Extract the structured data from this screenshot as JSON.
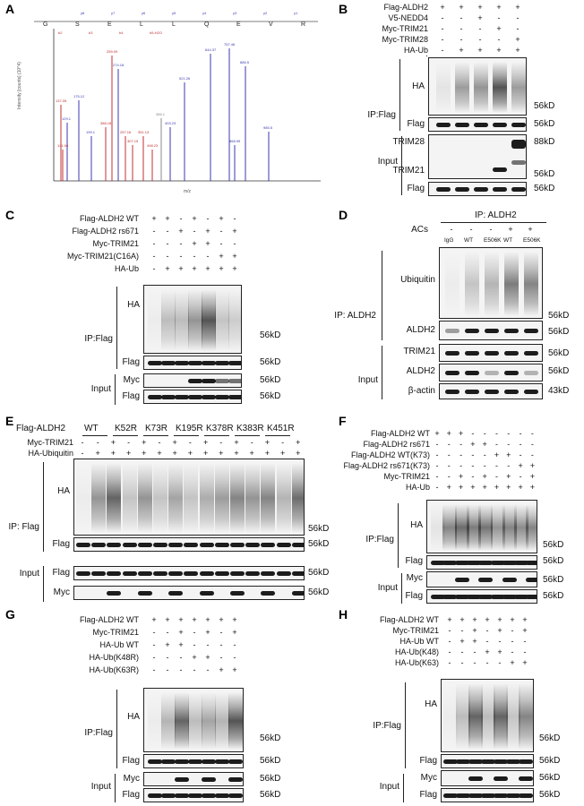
{
  "figure": {
    "panel_labels": [
      "A",
      "B",
      "C",
      "D",
      "E",
      "F",
      "G",
      "H"
    ],
    "panel_a": {
      "residues": [
        "G",
        "S",
        "E",
        "L",
        "L",
        "Q",
        "E",
        "V",
        "R"
      ],
      "b_ions": [
        "b2",
        "b3",
        "b4",
        "b5-H2O"
      ],
      "y_ions": [
        "y8",
        "y7",
        "y6",
        "y5",
        "y4",
        "y3",
        "y2",
        "y1"
      ],
      "ylabel": "Intensity [counts] (10^4)",
      "xlabel": "m/z",
      "peak_labels": [
        "175.12",
        "259.09",
        "274.18",
        "431.23",
        "521.26",
        "644.37",
        "757.46",
        "886.5",
        "985.5",
        "199.1",
        "386.1",
        "403.23",
        "498.23",
        "868.99",
        "137.05",
        "129.1",
        "141.06",
        "155.09",
        "257.16",
        "307.15",
        "351.13",
        "388.18"
      ]
    },
    "panel_b": {
      "rows": [
        {
          "label": "Flag-ALDH2",
          "signs": [
            "+",
            "+",
            "+",
            "+",
            "+"
          ]
        },
        {
          "label": "V5-NEDD4",
          "signs": [
            "-",
            "-",
            "+",
            "-",
            "-"
          ]
        },
        {
          "label": "Myc-TRIM21",
          "signs": [
            "-",
            "-",
            "-",
            "+",
            "-"
          ]
        },
        {
          "label": "Myc-TRIM28",
          "signs": [
            "-",
            "-",
            "-",
            "-",
            "+"
          ]
        },
        {
          "label": "HA-Ub",
          "signs": [
            "-",
            "+",
            "+",
            "+",
            "+"
          ]
        }
      ],
      "ip_label": "IP:Flag",
      "input_label": "Input",
      "blots": [
        "HA",
        "Flag",
        "TRIM28",
        "TRIM21",
        "Flag"
      ],
      "mw": [
        "56kD",
        "56kD",
        "88kD",
        "56kD",
        "56kD"
      ]
    },
    "panel_c": {
      "rows": [
        {
          "label": "Flag-ALDH2 WT",
          "signs": [
            "+",
            "+",
            "-",
            "+",
            "-",
            "+",
            "-"
          ]
        },
        {
          "label": "Flag-ALDH2 rs671",
          "signs": [
            "-",
            "-",
            "+",
            "-",
            "+",
            "-",
            "+"
          ]
        },
        {
          "label": "Myc-TRIM21",
          "signs": [
            "-",
            "-",
            "-",
            "+",
            "+",
            "-",
            "-"
          ]
        },
        {
          "label": "Myc-TRIM21(C16A)",
          "signs": [
            "-",
            "-",
            "-",
            "-",
            "-",
            "+",
            "+"
          ]
        },
        {
          "label": "HA-Ub",
          "signs": [
            "-",
            "+",
            "+",
            "+",
            "+",
            "+",
            "+"
          ]
        }
      ],
      "ip_label": "IP:Flag",
      "input_label": "Input",
      "blots": [
        "HA",
        "Flag",
        "Myc",
        "Flag"
      ],
      "mw": [
        "56kD",
        "56kD",
        "56kD",
        "56kD"
      ]
    },
    "panel_d": {
      "ip_header": "IP: ALDH2",
      "acs_label": "ACs",
      "acs_signs": [
        "-",
        "-",
        "-",
        "+",
        "+"
      ],
      "lanes": [
        "IgG",
        "WT",
        "E506K",
        "WT",
        "E506K"
      ],
      "ip_label": "IP: ALDH2",
      "input_label": "Input",
      "blots": [
        "Ubiquitin",
        "ALDH2",
        "TRIM21",
        "ALDH2",
        "β-actin"
      ],
      "mw": [
        "56kD",
        "56kD",
        "56kD",
        "56kD",
        "43kD"
      ]
    },
    "panel_e": {
      "title": "Flag-ALDH2",
      "groups": [
        "WT",
        "K52R",
        "K73R",
        "K195R",
        "K378R",
        "K383R",
        "K451R"
      ],
      "trim_label": "Myc-TRIM21",
      "trim_signs": [
        "-",
        "-",
        "+",
        "-",
        "+",
        "-",
        "+",
        "-",
        "+",
        "-",
        "+",
        "-",
        "+",
        "-",
        "+"
      ],
      "ha_label": "HA-Ubiquitin",
      "ha_signs": [
        "-",
        "+",
        "+",
        "+",
        "+",
        "+",
        "+",
        "+",
        "+",
        "+",
        "+",
        "+",
        "+",
        "+",
        "+"
      ],
      "ip_label": "IP: Flag",
      "input_label": "Input",
      "blots": [
        "HA",
        "Flag",
        "Flag",
        "Myc"
      ],
      "mw": [
        "56kD",
        "56kD",
        "56kD",
        "56kD"
      ]
    },
    "panel_f": {
      "rows": [
        {
          "label": "Flag-ALDH2 WT",
          "signs": [
            "+",
            "+",
            "+",
            "-",
            "-",
            "-",
            "-",
            "-",
            "-"
          ]
        },
        {
          "label": "Flag-ALDH2 rs671",
          "signs": [
            "-",
            "-",
            "-",
            "+",
            "+",
            "-",
            "-",
            "-",
            "-"
          ]
        },
        {
          "label": "Flag-ALDH2 WT(K73)",
          "signs": [
            "-",
            "-",
            "-",
            "-",
            "-",
            "+",
            "+",
            "-",
            "-"
          ]
        },
        {
          "label": "Flag-ALDH2 rs671(K73)",
          "signs": [
            "-",
            "-",
            "-",
            "-",
            "-",
            "-",
            "-",
            "+",
            "+"
          ]
        },
        {
          "label": "Myc-TRIM21",
          "signs": [
            "-",
            "-",
            "+",
            "-",
            "+",
            "-",
            "+",
            "-",
            "+"
          ]
        },
        {
          "label": "HA-Ub",
          "signs": [
            "-",
            "+",
            "+",
            "+",
            "+",
            "+",
            "+",
            "+",
            "+"
          ]
        }
      ],
      "ip_label": "IP:Flag",
      "input_label": "Input",
      "blots": [
        "HA",
        "Flag",
        "Myc",
        "Flag"
      ],
      "mw": [
        "56kD",
        "56kD",
        "56kD",
        "56kD"
      ]
    },
    "panel_g": {
      "rows": [
        {
          "label": "Flag-ALDH2 WT",
          "signs": [
            "+",
            "+",
            "+",
            "+",
            "+",
            "+",
            "+"
          ]
        },
        {
          "label": "Myc-TRIM21",
          "signs": [
            "-",
            "-",
            "+",
            "-",
            "+",
            "-",
            "+"
          ]
        },
        {
          "label": "HA-Ub WT",
          "signs": [
            "-",
            "+",
            "+",
            "-",
            "-",
            "-",
            "-"
          ]
        },
        {
          "label": "HA-Ub(K48R)",
          "signs": [
            "-",
            "-",
            "-",
            "+",
            "+",
            "-",
            "-"
          ]
        },
        {
          "label": "HA-Ub(K63R)",
          "signs": [
            "-",
            "-",
            "-",
            "-",
            "-",
            "+",
            "+"
          ]
        }
      ],
      "ip_label": "IP:Flag",
      "input_label": "Input",
      "blots": [
        "HA",
        "Flag",
        "Myc",
        "Flag"
      ],
      "mw": [
        "56kD",
        "56kD",
        "56kD",
        "56kD"
      ]
    },
    "panel_h": {
      "rows": [
        {
          "label": "Flag-ALDH2 WT",
          "signs": [
            "+",
            "+",
            "+",
            "+",
            "+",
            "+",
            "+"
          ]
        },
        {
          "label": "Myc-TRIM21",
          "signs": [
            "-",
            "-",
            "+",
            "-",
            "+",
            "-",
            "+"
          ]
        },
        {
          "label": "HA-Ub WT",
          "signs": [
            "-",
            "+",
            "+",
            "-",
            "-",
            "-",
            "-"
          ]
        },
        {
          "label": "HA-Ub(K48)",
          "signs": [
            "-",
            "-",
            "-",
            "+",
            "+",
            "-",
            "-"
          ]
        },
        {
          "label": "HA-Ub(K63)",
          "signs": [
            "-",
            "-",
            "-",
            "-",
            "-",
            "+",
            "+"
          ]
        }
      ],
      "ip_label": "IP:Flag",
      "input_label": "Input",
      "blots": [
        "HA",
        "Flag",
        "Myc",
        "Flag"
      ],
      "mw": [
        "56kD",
        "56kD",
        "56kD",
        "56kD"
      ]
    }
  }
}
